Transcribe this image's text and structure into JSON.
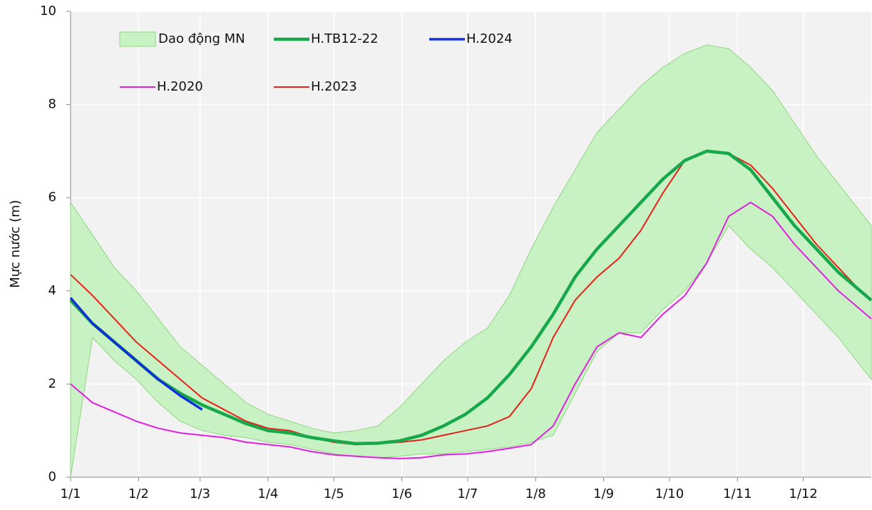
{
  "chart_data": {
    "type": "line",
    "y_label": "Mực nước (m)",
    "xlim": [
      0,
      365
    ],
    "ylim": [
      0,
      10
    ],
    "yticks": [
      0,
      2,
      4,
      6,
      8,
      10
    ],
    "xticks": [
      {
        "value": 0,
        "label": "1/1"
      },
      {
        "value": 31,
        "label": "1/2"
      },
      {
        "value": 59,
        "label": "1/3"
      },
      {
        "value": 90,
        "label": "1/4"
      },
      {
        "value": 120,
        "label": "1/5"
      },
      {
        "value": 151,
        "label": "1/6"
      },
      {
        "value": 181,
        "label": "1/7"
      },
      {
        "value": 212,
        "label": "1/8"
      },
      {
        "value": 243,
        "label": "1/9"
      },
      {
        "value": 273,
        "label": "1/10"
      },
      {
        "value": 304,
        "label": "1/11"
      },
      {
        "value": 334,
        "label": "1/12"
      }
    ],
    "grid": true,
    "x": [
      0,
      10,
      20,
      30,
      40,
      50,
      60,
      70,
      80,
      90,
      100,
      110,
      120,
      130,
      140,
      150,
      160,
      170,
      180,
      190,
      200,
      210,
      220,
      230,
      240,
      250,
      260,
      270,
      280,
      290,
      300,
      310,
      320,
      330,
      340,
      350,
      360,
      365
    ],
    "band": {
      "name": "Dao động MN",
      "color": "#c9f2c4",
      "edge": "#8fd67e",
      "upper": [
        5.9,
        5.2,
        4.5,
        4.0,
        3.4,
        2.8,
        2.4,
        2.0,
        1.6,
        1.35,
        1.2,
        1.05,
        0.95,
        1.0,
        1.1,
        1.5,
        2.0,
        2.5,
        2.9,
        3.2,
        3.9,
        4.9,
        5.8,
        6.6,
        7.4,
        7.9,
        8.4,
        8.8,
        9.1,
        9.28,
        9.2,
        8.8,
        8.3,
        7.6,
        6.9,
        6.3,
        5.7,
        5.4
      ],
      "lower": [
        0,
        3.0,
        2.5,
        2.1,
        1.6,
        1.2,
        1.0,
        0.9,
        0.85,
        0.75,
        0.7,
        0.6,
        0.5,
        0.45,
        0.42,
        0.45,
        0.5,
        0.5,
        0.55,
        0.6,
        0.65,
        0.75,
        0.9,
        1.8,
        2.7,
        3.1,
        3.1,
        3.6,
        4.0,
        4.6,
        5.4,
        4.9,
        4.5,
        4.0,
        3.5,
        3.0,
        2.4,
        2.1
      ]
    },
    "series": [
      {
        "name": "H.2020",
        "color": "#e020e0",
        "line_width": 2,
        "values": [
          2.0,
          1.6,
          1.4,
          1.2,
          1.05,
          0.95,
          0.9,
          0.85,
          0.75,
          0.7,
          0.65,
          0.55,
          0.48,
          0.45,
          0.42,
          0.4,
          0.42,
          0.48,
          0.5,
          0.55,
          0.62,
          0.7,
          1.1,
          2.0,
          2.8,
          3.1,
          3.0,
          3.5,
          3.9,
          4.6,
          5.6,
          5.9,
          5.6,
          5.0,
          4.5,
          4.0,
          3.6,
          3.4
        ]
      },
      {
        "name": "H.2023",
        "color": "#e8201a",
        "line_width": 2,
        "values": [
          4.35,
          3.9,
          3.4,
          2.9,
          2.5,
          2.1,
          1.7,
          1.45,
          1.2,
          1.05,
          1.0,
          0.85,
          0.75,
          0.7,
          0.72,
          0.75,
          0.8,
          0.9,
          1.0,
          1.1,
          1.3,
          1.9,
          3.0,
          3.8,
          4.3,
          4.7,
          5.3,
          6.1,
          6.8,
          7.0,
          6.95,
          6.7,
          6.2,
          5.6,
          5.0,
          4.5,
          4.0,
          3.8
        ]
      },
      {
        "name": "H.TB12-22",
        "color": "#16a84a",
        "line_width": 4.5,
        "values": [
          3.8,
          3.3,
          2.9,
          2.5,
          2.1,
          1.8,
          1.55,
          1.35,
          1.15,
          1.0,
          0.95,
          0.85,
          0.78,
          0.72,
          0.73,
          0.78,
          0.9,
          1.1,
          1.35,
          1.7,
          2.2,
          2.8,
          3.5,
          4.3,
          4.9,
          5.4,
          5.9,
          6.4,
          6.8,
          7.0,
          6.95,
          6.6,
          6.0,
          5.4,
          4.9,
          4.4,
          4.0,
          3.8
        ]
      },
      {
        "name": "H.2024",
        "color": "#1030d8",
        "line_width": 3.5,
        "values": [
          3.85,
          3.3,
          2.9,
          2.5,
          2.1,
          1.75,
          1.45,
          null,
          null,
          null,
          null,
          null,
          null,
          null,
          null,
          null,
          null,
          null,
          null,
          null,
          null,
          null,
          null,
          null,
          null,
          null,
          null,
          null,
          null,
          null,
          null,
          null,
          null,
          null,
          null,
          null,
          null,
          null
        ]
      }
    ]
  }
}
